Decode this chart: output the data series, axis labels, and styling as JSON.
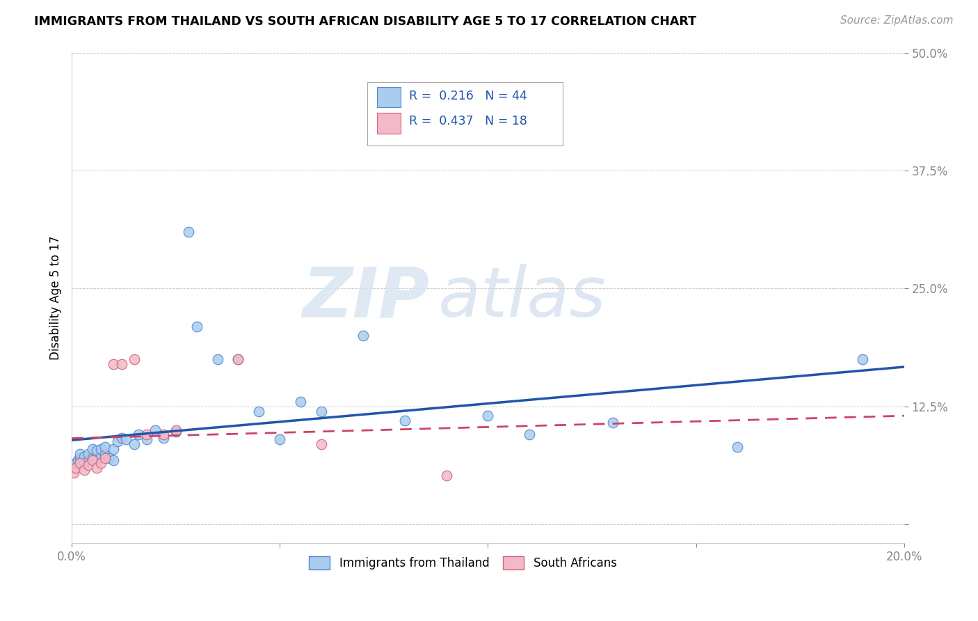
{
  "title": "IMMIGRANTS FROM THAILAND VS SOUTH AFRICAN DISABILITY AGE 5 TO 17 CORRELATION CHART",
  "source": "Source: ZipAtlas.com",
  "ylabel": "Disability Age 5 to 17",
  "xmin": 0.0,
  "xmax": 0.2,
  "ymin": -0.02,
  "ymax": 0.5,
  "x_ticks": [
    0.0,
    0.05,
    0.1,
    0.15,
    0.2
  ],
  "y_ticks": [
    0.0,
    0.125,
    0.25,
    0.375,
    0.5
  ],
  "thailand_R": "0.216",
  "thailand_N": "44",
  "southafrica_R": "0.437",
  "southafrica_N": "18",
  "legend_label1": "Immigrants from Thailand",
  "legend_label2": "South Africans",
  "thailand_color": "#aaccee",
  "thailand_edge_color": "#5588cc",
  "thailand_line_color": "#2255aa",
  "southafrica_color": "#f4b8c8",
  "southafrica_edge_color": "#cc6677",
  "southafrica_line_color": "#cc4466",
  "watermark_zip": "ZIP",
  "watermark_atlas": "atlas",
  "background_color": "#ffffff",
  "grid_color": "#cccccc",
  "thailand_x": [
    0.0005,
    0.001,
    0.0015,
    0.002,
    0.002,
    0.003,
    0.003,
    0.004,
    0.004,
    0.005,
    0.005,
    0.006,
    0.006,
    0.007,
    0.007,
    0.008,
    0.008,
    0.009,
    0.01,
    0.01,
    0.011,
    0.012,
    0.013,
    0.015,
    0.016,
    0.018,
    0.02,
    0.022,
    0.025,
    0.028,
    0.03,
    0.035,
    0.04,
    0.045,
    0.05,
    0.055,
    0.06,
    0.07,
    0.08,
    0.1,
    0.11,
    0.13,
    0.16,
    0.19
  ],
  "thailand_y": [
    0.06,
    0.065,
    0.068,
    0.07,
    0.075,
    0.065,
    0.072,
    0.068,
    0.075,
    0.07,
    0.08,
    0.068,
    0.078,
    0.072,
    0.08,
    0.075,
    0.082,
    0.07,
    0.068,
    0.08,
    0.088,
    0.092,
    0.09,
    0.085,
    0.095,
    0.09,
    0.1,
    0.092,
    0.098,
    0.31,
    0.21,
    0.175,
    0.175,
    0.12,
    0.09,
    0.13,
    0.12,
    0.2,
    0.11,
    0.115,
    0.095,
    0.108,
    0.082,
    0.175
  ],
  "southafrica_x": [
    0.0005,
    0.001,
    0.002,
    0.003,
    0.004,
    0.005,
    0.006,
    0.007,
    0.008,
    0.01,
    0.012,
    0.015,
    0.018,
    0.022,
    0.025,
    0.04,
    0.06,
    0.09
  ],
  "southafrica_y": [
    0.055,
    0.06,
    0.065,
    0.058,
    0.063,
    0.068,
    0.06,
    0.065,
    0.07,
    0.17,
    0.17,
    0.175,
    0.095,
    0.095,
    0.1,
    0.175,
    0.085,
    0.052
  ]
}
